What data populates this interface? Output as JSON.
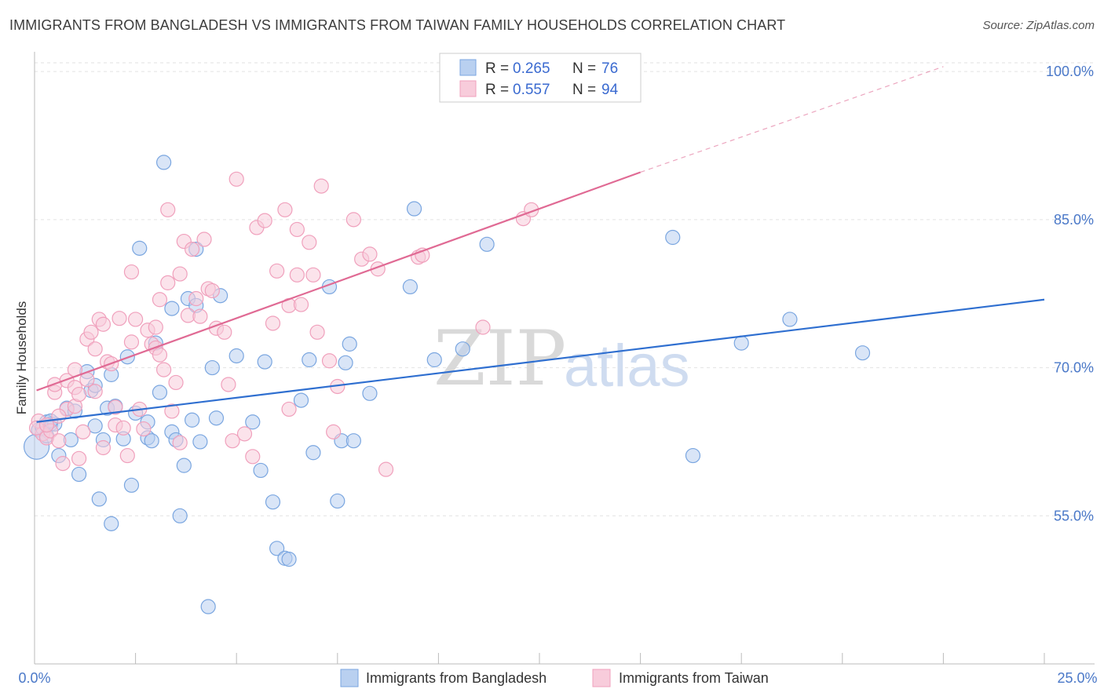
{
  "title": "IMMIGRANTS FROM BANGLADESH VS IMMIGRANTS FROM TAIWAN FAMILY HOUSEHOLDS CORRELATION CHART",
  "source": "Source: ZipAtlas.com",
  "watermark": {
    "zip": "ZIP",
    "atlas": "atlas"
  },
  "chart_data": {
    "type": "scatter",
    "title": "IMMIGRANTS FROM BANGLADESH VS IMMIGRANTS FROM TAIWAN FAMILY HOUSEHOLDS CORRELATION CHART",
    "xlabel": "",
    "ylabel": "Family Households",
    "xlim": [
      0,
      25
    ],
    "ylim": [
      40,
      102
    ],
    "x_tick_labels": [
      "0.0%",
      "25.0%"
    ],
    "y_ticks": [
      55,
      70,
      85,
      100
    ],
    "y_tick_labels": [
      "55.0%",
      "70.0%",
      "85.0%",
      "100.0%"
    ],
    "grid": true,
    "legend_position": "top-center",
    "series": [
      {
        "name": "Immigrants from Bangladesh",
        "color": "#7aa6e0",
        "fill": "#b9d0f0",
        "line_color": "#2f6fd0",
        "R": "0.265",
        "N": "76",
        "trend": {
          "x0": 0.05,
          "y0": 64.5,
          "x1": 25.0,
          "y1": 76.9
        },
        "points": [
          [
            0.1,
            63.7
          ],
          [
            0.2,
            63.9
          ],
          [
            0.3,
            64.5
          ],
          [
            0.4,
            64.3
          ],
          [
            0.5,
            64.3
          ],
          [
            0.6,
            61.1
          ],
          [
            0.8,
            65.9
          ],
          [
            0.9,
            62.7
          ],
          [
            1.0,
            65.6
          ],
          [
            1.1,
            59.2
          ],
          [
            1.3,
            69.6
          ],
          [
            1.4,
            67.7
          ],
          [
            1.5,
            68.2
          ],
          [
            1.5,
            64.1
          ],
          [
            1.6,
            56.7
          ],
          [
            1.7,
            62.7
          ],
          [
            1.8,
            65.9
          ],
          [
            1.9,
            69.3
          ],
          [
            1.9,
            54.2
          ],
          [
            2.0,
            66.1
          ],
          [
            2.2,
            62.8
          ],
          [
            2.3,
            71.1
          ],
          [
            2.4,
            58.1
          ],
          [
            2.5,
            65.4
          ],
          [
            2.6,
            82.1
          ],
          [
            2.8,
            62.9
          ],
          [
            2.8,
            64.5
          ],
          [
            2.9,
            62.6
          ],
          [
            3.0,
            72.5
          ],
          [
            3.1,
            67.5
          ],
          [
            3.2,
            90.8
          ],
          [
            3.4,
            76.0
          ],
          [
            3.4,
            63.5
          ],
          [
            3.5,
            62.7
          ],
          [
            3.6,
            55.0
          ],
          [
            3.7,
            60.1
          ],
          [
            3.8,
            77.0
          ],
          [
            3.9,
            64.7
          ],
          [
            4.0,
            82.0
          ],
          [
            4.0,
            76.3
          ],
          [
            4.1,
            62.5
          ],
          [
            4.3,
            45.8
          ],
          [
            4.4,
            70.0
          ],
          [
            4.5,
            64.9
          ],
          [
            4.6,
            77.3
          ],
          [
            5.0,
            71.2
          ],
          [
            5.4,
            64.5
          ],
          [
            5.6,
            59.6
          ],
          [
            5.7,
            70.6
          ],
          [
            5.9,
            56.4
          ],
          [
            6.0,
            51.7
          ],
          [
            6.2,
            50.7
          ],
          [
            6.3,
            50.6
          ],
          [
            6.6,
            66.7
          ],
          [
            6.8,
            70.8
          ],
          [
            6.9,
            61.4
          ],
          [
            7.3,
            78.2
          ],
          [
            7.5,
            56.5
          ],
          [
            7.6,
            62.6
          ],
          [
            7.7,
            70.5
          ],
          [
            7.8,
            72.4
          ],
          [
            7.9,
            62.6
          ],
          [
            8.3,
            67.4
          ],
          [
            9.3,
            78.2
          ],
          [
            9.4,
            86.1
          ],
          [
            9.9,
            70.8
          ],
          [
            10.6,
            71.9
          ],
          [
            11.2,
            82.5
          ],
          [
            15.8,
            83.2
          ],
          [
            16.3,
            61.1
          ],
          [
            17.5,
            72.5
          ],
          [
            18.7,
            74.9
          ],
          [
            20.5,
            71.5
          ],
          [
            0.05,
            62.0
          ],
          [
            0.3,
            63.1
          ],
          [
            0.4,
            64.6
          ]
        ]
      },
      {
        "name": "Immigrants from Taiwan",
        "color": "#f0a0bc",
        "fill": "#f8ccdb",
        "line_color": "#e06a94",
        "R": "0.557",
        "N": "94",
        "trend": {
          "x0": 0.05,
          "y0": 67.7,
          "x1": 15.0,
          "y1": 89.8
        },
        "trend_dashed": {
          "x0": 15.0,
          "y0": 89.8,
          "x1": 22.5,
          "y1": 100.5
        },
        "points": [
          [
            0.1,
            64.6
          ],
          [
            0.2,
            63.3
          ],
          [
            0.3,
            62.9
          ],
          [
            0.4,
            63.6
          ],
          [
            0.5,
            67.5
          ],
          [
            0.5,
            68.3
          ],
          [
            0.6,
            62.6
          ],
          [
            0.7,
            60.3
          ],
          [
            0.8,
            68.7
          ],
          [
            0.8,
            65.8
          ],
          [
            1.0,
            69.8
          ],
          [
            1.0,
            68.0
          ],
          [
            1.0,
            66.1
          ],
          [
            1.1,
            67.3
          ],
          [
            1.2,
            63.5
          ],
          [
            1.3,
            72.9
          ],
          [
            1.3,
            68.8
          ],
          [
            1.4,
            73.6
          ],
          [
            1.5,
            71.9
          ],
          [
            1.5,
            67.6
          ],
          [
            1.6,
            74.9
          ],
          [
            1.7,
            74.4
          ],
          [
            1.8,
            70.6
          ],
          [
            1.9,
            70.4
          ],
          [
            2.0,
            66.0
          ],
          [
            2.0,
            64.2
          ],
          [
            2.1,
            75.0
          ],
          [
            2.2,
            63.9
          ],
          [
            2.3,
            61.1
          ],
          [
            2.4,
            72.6
          ],
          [
            2.4,
            79.7
          ],
          [
            2.5,
            74.9
          ],
          [
            2.6,
            65.8
          ],
          [
            2.8,
            73.8
          ],
          [
            2.9,
            72.4
          ],
          [
            3.0,
            74.1
          ],
          [
            3.0,
            72.0
          ],
          [
            3.1,
            76.9
          ],
          [
            3.1,
            71.3
          ],
          [
            3.2,
            69.8
          ],
          [
            3.3,
            78.6
          ],
          [
            3.3,
            86.0
          ],
          [
            3.4,
            65.6
          ],
          [
            3.5,
            68.5
          ],
          [
            3.6,
            79.5
          ],
          [
            3.7,
            82.8
          ],
          [
            3.8,
            75.3
          ],
          [
            3.9,
            82.0
          ],
          [
            4.0,
            77.0
          ],
          [
            4.1,
            75.2
          ],
          [
            4.2,
            83.0
          ],
          [
            4.3,
            78.0
          ],
          [
            4.4,
            77.8
          ],
          [
            4.5,
            74.0
          ],
          [
            4.7,
            73.6
          ],
          [
            4.8,
            68.3
          ],
          [
            5.0,
            89.1
          ],
          [
            5.2,
            63.3
          ],
          [
            5.4,
            61.0
          ],
          [
            5.5,
            84.2
          ],
          [
            5.7,
            84.9
          ],
          [
            5.9,
            74.5
          ],
          [
            6.0,
            79.8
          ],
          [
            6.2,
            86.0
          ],
          [
            6.3,
            76.3
          ],
          [
            6.5,
            84.0
          ],
          [
            6.5,
            79.4
          ],
          [
            6.6,
            76.4
          ],
          [
            6.8,
            82.7
          ],
          [
            6.9,
            79.4
          ],
          [
            7.0,
            73.6
          ],
          [
            7.1,
            88.4
          ],
          [
            7.3,
            70.7
          ],
          [
            7.4,
            63.5
          ],
          [
            7.5,
            68.1
          ],
          [
            7.9,
            85.0
          ],
          [
            8.1,
            81.0
          ],
          [
            8.3,
            81.5
          ],
          [
            8.5,
            80.0
          ],
          [
            8.7,
            59.7
          ],
          [
            9.5,
            81.2
          ],
          [
            9.6,
            81.4
          ],
          [
            11.1,
            74.1
          ],
          [
            12.1,
            85.1
          ],
          [
            12.3,
            86.0
          ],
          [
            0.05,
            63.9
          ],
          [
            0.3,
            64.2
          ],
          [
            0.6,
            65.1
          ],
          [
            1.1,
            60.8
          ],
          [
            1.7,
            61.9
          ],
          [
            2.7,
            63.8
          ],
          [
            3.6,
            62.4
          ],
          [
            4.9,
            62.6
          ],
          [
            6.3,
            65.8
          ]
        ]
      }
    ]
  },
  "bottom_legend": [
    "Immigrants from Bangladesh",
    "Immigrants from Taiwan"
  ]
}
